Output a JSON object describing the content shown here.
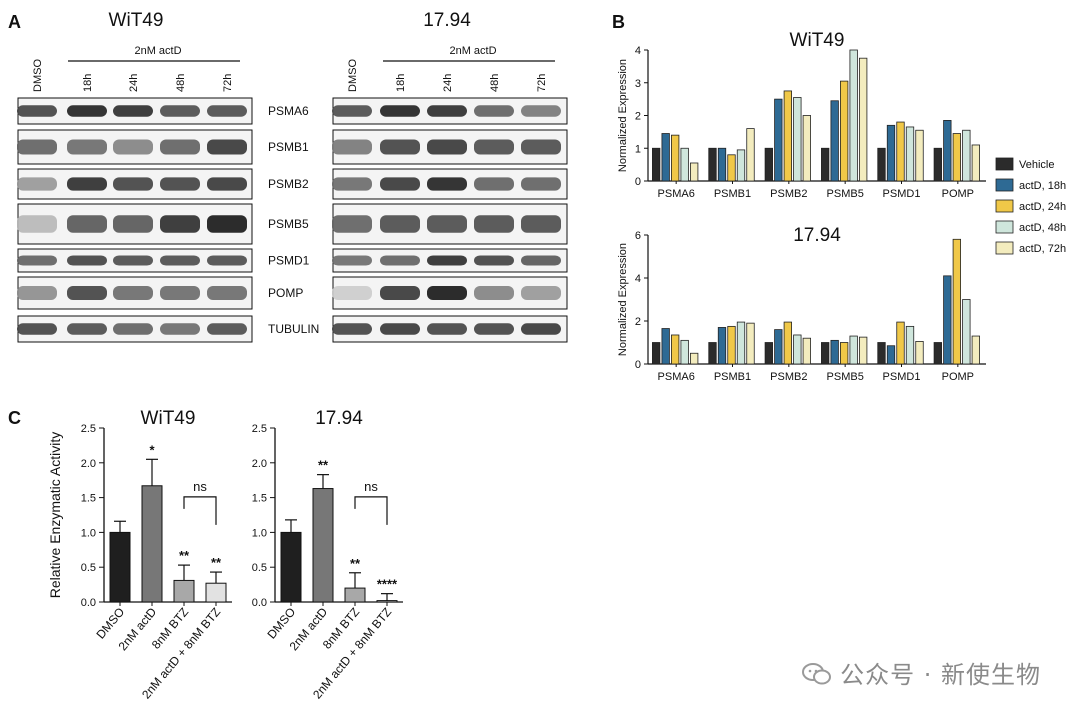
{
  "panel_a": {
    "letter": "A",
    "cell_lines": [
      "WiT49",
      "17.94"
    ],
    "treatment_header": "2nM actD",
    "lane_labels": [
      "DMSO",
      "18h",
      "24h",
      "48h",
      "72h"
    ],
    "proteins": [
      "PSMA6",
      "PSMB1",
      "PSMB2",
      "PSMB5",
      "PSMD1",
      "POMP",
      "TUBULIN"
    ]
  },
  "panel_b": {
    "letter": "B",
    "legend": [
      "Vehicle",
      "actD, 18h",
      "actD, 24h",
      "actD, 48h",
      "actD, 72h"
    ]
  },
  "panel_c": {
    "letter": "C",
    "ylabel": "Relative Enzymatic Activity"
  },
  "colors": {
    "series": [
      "#2b2b2b",
      "#2e6a94",
      "#f0c848",
      "#cfe6dc",
      "#f3ecbe"
    ],
    "bars_c": [
      "#1f1f1f",
      "#777777",
      "#a8a8a8",
      "#e2e2e2"
    ]
  },
  "chart_data": [
    {
      "type": "bar",
      "title": "WiT49",
      "ylabel": "Normalized Expression",
      "ylim": [
        0,
        4
      ],
      "yticks": [
        "0",
        "1",
        "2",
        "3",
        "4"
      ],
      "categories": [
        "PSMA6",
        "PSMB1",
        "PSMB2",
        "PSMB5",
        "PSMD1",
        "POMP"
      ],
      "series": [
        {
          "name": "Vehicle",
          "values": [
            1,
            1,
            1,
            1,
            1,
            1
          ]
        },
        {
          "name": "actD, 18h",
          "values": [
            1.45,
            1.0,
            2.5,
            2.45,
            1.7,
            1.85
          ]
        },
        {
          "name": "actD, 24h",
          "values": [
            1.4,
            0.8,
            2.75,
            3.05,
            1.8,
            1.45
          ]
        },
        {
          "name": "actD, 48h",
          "values": [
            1.0,
            0.95,
            2.55,
            4.0,
            1.65,
            1.55
          ]
        },
        {
          "name": "actD, 72h",
          "values": [
            0.55,
            1.6,
            2.0,
            3.75,
            1.55,
            1.1
          ]
        }
      ]
    },
    {
      "type": "bar",
      "title": "17.94",
      "ylabel": "Normalized Expression",
      "ylim": [
        0,
        6
      ],
      "yticks": [
        "0",
        "2",
        "4",
        "6"
      ],
      "categories": [
        "PSMA6",
        "PSMB1",
        "PSMB2",
        "PSMB5",
        "PSMD1",
        "POMP"
      ],
      "series": [
        {
          "name": "Vehicle",
          "values": [
            1,
            1,
            1,
            1,
            1,
            1
          ]
        },
        {
          "name": "actD, 18h",
          "values": [
            1.65,
            1.7,
            1.6,
            1.1,
            0.85,
            4.1
          ]
        },
        {
          "name": "actD, 24h",
          "values": [
            1.35,
            1.75,
            1.95,
            1.0,
            1.95,
            5.8
          ]
        },
        {
          "name": "actD, 48h",
          "values": [
            1.1,
            1.95,
            1.35,
            1.3,
            1.75,
            3.0
          ]
        },
        {
          "name": "actD, 72h",
          "values": [
            0.5,
            1.9,
            1.2,
            1.25,
            1.05,
            1.3
          ]
        }
      ]
    },
    {
      "type": "bar",
      "title": "WiT49",
      "ylabel": "Relative Enzymatic Activity",
      "ylim": [
        0,
        2.5
      ],
      "yticks": [
        "0.0",
        "0.5",
        "1.0",
        "1.5",
        "2.0",
        "2.5"
      ],
      "categories": [
        "DMSO",
        "2nM actD",
        "8nM BTZ",
        "2nM actD + 8nM BTZ"
      ],
      "values": [
        1.0,
        1.67,
        0.31,
        0.27
      ],
      "errors": [
        0.16,
        0.38,
        0.22,
        0.16
      ],
      "significance": [
        "",
        "*",
        "**",
        "**"
      ],
      "bracket": {
        "from": 2,
        "to": 3,
        "label": "ns"
      }
    },
    {
      "type": "bar",
      "title": "17.94",
      "ylabel": "Relative Enzymatic Activity",
      "ylim": [
        0,
        2.5
      ],
      "yticks": [
        "0.0",
        "0.5",
        "1.0",
        "1.5",
        "2.0",
        "2.5"
      ],
      "categories": [
        "DMSO",
        "2nM actD",
        "8nM BTZ",
        "2nM actD + 8nM BTZ"
      ],
      "values": [
        1.0,
        1.63,
        0.2,
        0.02
      ],
      "errors": [
        0.18,
        0.2,
        0.22,
        0.1
      ],
      "significance": [
        "",
        "**",
        "**",
        "****"
      ],
      "bracket": {
        "from": 2,
        "to": 3,
        "label": "ns"
      }
    }
  ],
  "watermark": "公众号 · 新使生物"
}
